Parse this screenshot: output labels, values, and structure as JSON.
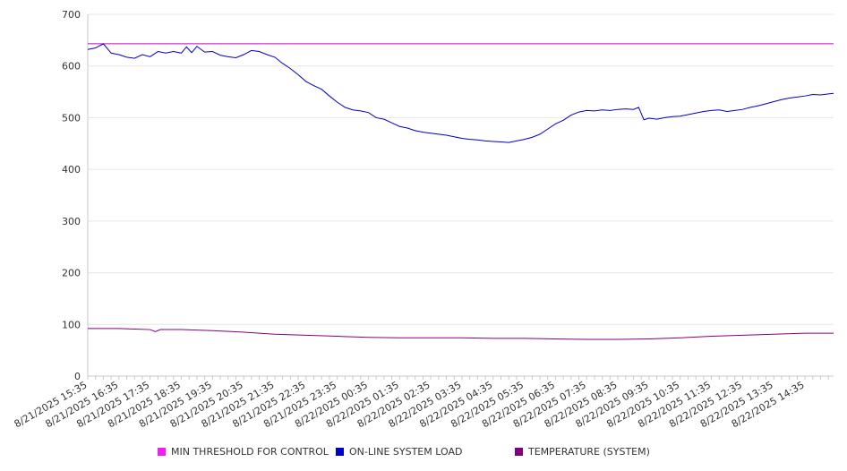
{
  "chart_data": {
    "type": "line",
    "grid": true,
    "legend_placement": "bottom",
    "ylim": [
      0,
      700
    ],
    "yticks": [
      0,
      100,
      200,
      300,
      400,
      500,
      600,
      700
    ],
    "x_tick_labels": [
      "8/21/2025 15:35",
      "8/21/2025 16:35",
      "8/21/2025 17:35",
      "8/21/2025 18:35",
      "8/21/2025 19:35",
      "8/21/2025 20:35",
      "8/21/2025 21:35",
      "8/21/2025 22:35",
      "8/21/2025 23:35",
      "8/22/2025 00:35",
      "8/22/2025 01:35",
      "8/22/2025 02:35",
      "8/22/2025 03:35",
      "8/22/2025 04:35",
      "8/22/2025 05:35",
      "8/22/2025 06:35",
      "8/22/2025 07:35",
      "8/22/2025 08:35",
      "8/22/2025 09:35",
      "8/22/2025 10:35",
      "8/22/2025 11:35",
      "8/22/2025 12:35",
      "8/22/2025 13:35",
      "8/22/2025 14:35"
    ],
    "x_range": [
      "8/21/2025 15:35",
      "8/22/2025 15:30"
    ],
    "series": [
      {
        "name": "MIN THRESHOLD FOR CONTROL",
        "color": "#cc00cc",
        "points": [
          [
            "8/21/2025 15:35",
            643
          ],
          [
            "8/22/2025 15:30",
            643
          ]
        ]
      },
      {
        "name": "ON-LINE SYSTEM LOAD",
        "color": "#0000cc",
        "points": [
          [
            "8/21/2025 15:35",
            632
          ],
          [
            "8/21/2025 15:50",
            635
          ],
          [
            "8/21/2025 16:05",
            643
          ],
          [
            "8/21/2025 16:20",
            625
          ],
          [
            "8/21/2025 16:35",
            622
          ],
          [
            "8/21/2025 16:50",
            617
          ],
          [
            "8/21/2025 17:05",
            615
          ],
          [
            "8/21/2025 17:20",
            622
          ],
          [
            "8/21/2025 17:35",
            618
          ],
          [
            "8/21/2025 17:50",
            628
          ],
          [
            "8/21/2025 18:05",
            625
          ],
          [
            "8/21/2025 18:20",
            628
          ],
          [
            "8/21/2025 18:35",
            625
          ],
          [
            "8/21/2025 18:45",
            637
          ],
          [
            "8/21/2025 18:55",
            626
          ],
          [
            "8/21/2025 19:05",
            638
          ],
          [
            "8/21/2025 19:20",
            627
          ],
          [
            "8/21/2025 19:35",
            628
          ],
          [
            "8/21/2025 19:50",
            621
          ],
          [
            "8/21/2025 20:05",
            618
          ],
          [
            "8/21/2025 20:20",
            616
          ],
          [
            "8/21/2025 20:35",
            622
          ],
          [
            "8/21/2025 20:50",
            630
          ],
          [
            "8/21/2025 21:05",
            628
          ],
          [
            "8/21/2025 21:20",
            622
          ],
          [
            "8/21/2025 21:35",
            617
          ],
          [
            "8/21/2025 21:50",
            605
          ],
          [
            "8/21/2025 22:05",
            595
          ],
          [
            "8/21/2025 22:20",
            583
          ],
          [
            "8/21/2025 22:35",
            570
          ],
          [
            "8/21/2025 22:50",
            562
          ],
          [
            "8/21/2025 23:05",
            555
          ],
          [
            "8/21/2025 23:20",
            542
          ],
          [
            "8/21/2025 23:35",
            530
          ],
          [
            "8/21/2025 23:50",
            520
          ],
          [
            "8/22/2025 00:05",
            515
          ],
          [
            "8/22/2025 00:20",
            513
          ],
          [
            "8/22/2025 00:35",
            510
          ],
          [
            "8/22/2025 00:50",
            500
          ],
          [
            "8/22/2025 01:05",
            497
          ],
          [
            "8/22/2025 01:20",
            490
          ],
          [
            "8/22/2025 01:35",
            483
          ],
          [
            "8/22/2025 01:50",
            480
          ],
          [
            "8/22/2025 02:05",
            475
          ],
          [
            "8/22/2025 02:20",
            472
          ],
          [
            "8/22/2025 02:35",
            470
          ],
          [
            "8/22/2025 02:50",
            468
          ],
          [
            "8/22/2025 03:05",
            466
          ],
          [
            "8/22/2025 03:20",
            463
          ],
          [
            "8/22/2025 03:35",
            460
          ],
          [
            "8/22/2025 03:50",
            458
          ],
          [
            "8/22/2025 04:05",
            457
          ],
          [
            "8/22/2025 04:20",
            455
          ],
          [
            "8/22/2025 04:35",
            454
          ],
          [
            "8/22/2025 04:50",
            453
          ],
          [
            "8/22/2025 05:05",
            452
          ],
          [
            "8/22/2025 05:20",
            455
          ],
          [
            "8/22/2025 05:35",
            458
          ],
          [
            "8/22/2025 05:50",
            462
          ],
          [
            "8/22/2025 06:05",
            468
          ],
          [
            "8/22/2025 06:20",
            478
          ],
          [
            "8/22/2025 06:35",
            488
          ],
          [
            "8/22/2025 06:50",
            495
          ],
          [
            "8/22/2025 07:05",
            505
          ],
          [
            "8/22/2025 07:20",
            511
          ],
          [
            "8/22/2025 07:35",
            514
          ],
          [
            "8/22/2025 07:50",
            513
          ],
          [
            "8/22/2025 08:05",
            515
          ],
          [
            "8/22/2025 08:20",
            514
          ],
          [
            "8/22/2025 08:35",
            516
          ],
          [
            "8/22/2025 08:50",
            517
          ],
          [
            "8/22/2025 09:05",
            516
          ],
          [
            "8/22/2025 09:15",
            520
          ],
          [
            "8/22/2025 09:25",
            496
          ],
          [
            "8/22/2025 09:35",
            499
          ],
          [
            "8/22/2025 09:50",
            497
          ],
          [
            "8/22/2025 10:05",
            500
          ],
          [
            "8/22/2025 10:20",
            502
          ],
          [
            "8/22/2025 10:35",
            503
          ],
          [
            "8/22/2025 10:50",
            506
          ],
          [
            "8/22/2025 11:05",
            509
          ],
          [
            "8/22/2025 11:20",
            512
          ],
          [
            "8/22/2025 11:35",
            514
          ],
          [
            "8/22/2025 11:50",
            515
          ],
          [
            "8/22/2025 12:05",
            512
          ],
          [
            "8/22/2025 12:20",
            514
          ],
          [
            "8/22/2025 12:35",
            516
          ],
          [
            "8/22/2025 12:50",
            520
          ],
          [
            "8/22/2025 13:05",
            523
          ],
          [
            "8/22/2025 13:20",
            527
          ],
          [
            "8/22/2025 13:35",
            531
          ],
          [
            "8/22/2025 13:50",
            535
          ],
          [
            "8/22/2025 14:05",
            538
          ],
          [
            "8/22/2025 14:20",
            540
          ],
          [
            "8/22/2025 14:35",
            542
          ],
          [
            "8/22/2025 14:50",
            545
          ],
          [
            "8/22/2025 15:05",
            544
          ],
          [
            "8/22/2025 15:20",
            546
          ],
          [
            "8/22/2025 15:30",
            547
          ]
        ]
      },
      {
        "name": "TEMPERATURE (SYSTEM)",
        "color": "#800080",
        "points": [
          [
            "8/21/2025 15:35",
            92
          ],
          [
            "8/21/2025 16:35",
            92
          ],
          [
            "8/21/2025 17:05",
            91
          ],
          [
            "8/21/2025 17:35",
            90
          ],
          [
            "8/21/2025 17:45",
            86
          ],
          [
            "8/21/2025 17:55",
            90
          ],
          [
            "8/21/2025 18:35",
            90
          ],
          [
            "8/21/2025 19:35",
            88
          ],
          [
            "8/21/2025 20:35",
            85
          ],
          [
            "8/21/2025 21:35",
            81
          ],
          [
            "8/21/2025 22:35",
            79
          ],
          [
            "8/21/2025 23:35",
            77
          ],
          [
            "8/22/2025 00:35",
            75
          ],
          [
            "8/22/2025 01:35",
            74
          ],
          [
            "8/22/2025 02:35",
            74
          ],
          [
            "8/22/2025 03:35",
            74
          ],
          [
            "8/22/2025 04:35",
            73
          ],
          [
            "8/22/2025 05:35",
            73
          ],
          [
            "8/22/2025 06:35",
            72
          ],
          [
            "8/22/2025 07:35",
            71
          ],
          [
            "8/22/2025 08:35",
            71
          ],
          [
            "8/22/2025 09:35",
            72
          ],
          [
            "8/22/2025 10:35",
            74
          ],
          [
            "8/22/2025 11:35",
            77
          ],
          [
            "8/22/2025 12:35",
            79
          ],
          [
            "8/22/2025 13:35",
            81
          ],
          [
            "8/22/2025 14:35",
            83
          ],
          [
            "8/22/2025 15:30",
            83
          ]
        ]
      }
    ]
  }
}
